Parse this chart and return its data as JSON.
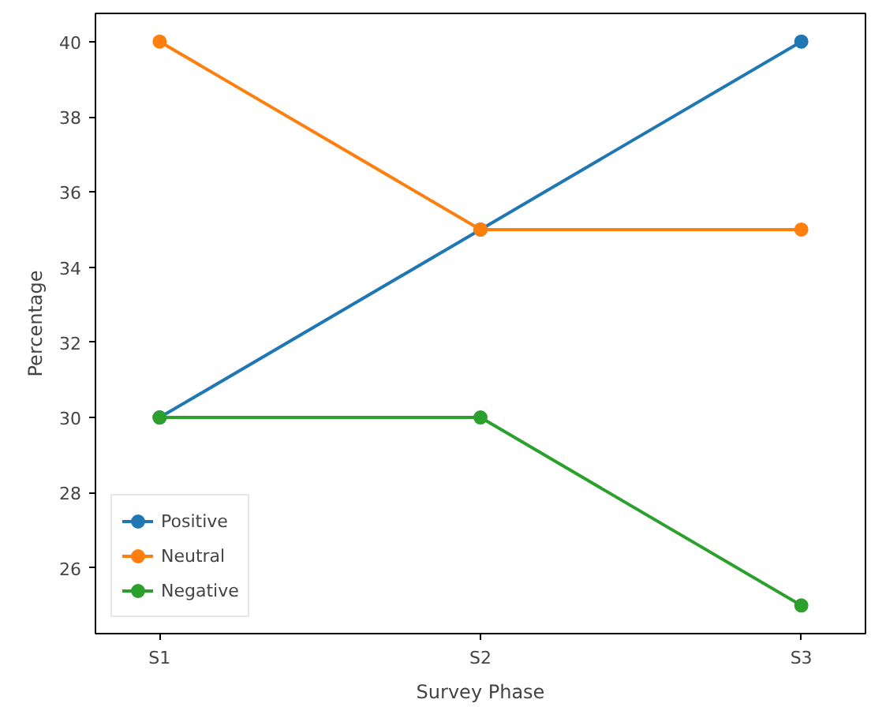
{
  "chart_data": {
    "type": "line",
    "xlabel": "Survey Phase",
    "ylabel": "Percentage",
    "categories": [
      "S1",
      "S2",
      "S3"
    ],
    "series": [
      {
        "name": "Positive",
        "color": "#1f77b4",
        "values": [
          30,
          35,
          40
        ]
      },
      {
        "name": "Neutral",
        "color": "#ff7f0e",
        "values": [
          40,
          35,
          35
        ]
      },
      {
        "name": "Negative",
        "color": "#2ca02c",
        "values": [
          30,
          30,
          25
        ]
      }
    ],
    "ylim": [
      24.25,
      40.75
    ],
    "yticks": [
      26,
      28,
      30,
      32,
      34,
      36,
      38,
      40
    ],
    "legend": "bottom left",
    "marker": "circle",
    "line_style": "solid",
    "grid": false
  }
}
